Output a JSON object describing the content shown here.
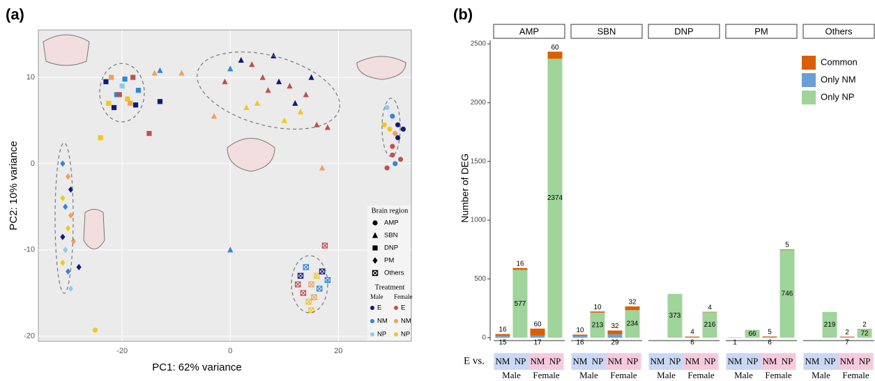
{
  "chart_data": [
    {
      "type": "scatter",
      "panel_label": "(a)",
      "x_label": "PC1: 62% variance",
      "y_label": "PC2: 10% variance",
      "xlim": [
        -35.5,
        33.5
      ],
      "ylim": [
        -20.6,
        15.5
      ],
      "xticks": [
        -20,
        0,
        20
      ],
      "yticks": [
        -20,
        -10,
        0,
        10
      ],
      "grid": true,
      "legend_title": "Brain region",
      "series": [
        {
          "name": "AMP",
          "marker": "circle",
          "x": [
            29,
            30,
            31,
            30.5,
            29.5,
            31,
            30,
            28.5,
            32,
            30,
            29,
            30.5,
            31.5,
            -25
          ],
          "y": [
            6.5,
            5.5,
            4.5,
            3.5,
            4,
            3,
            2,
            4.5,
            4,
            1,
            -0.5,
            0,
            0.5,
            -19.3
          ],
          "colors": [
            "#8fcbef",
            "#2e86de",
            "#0d1b7a",
            "#f0a05a",
            "#f5c51b",
            "#0d1b7a",
            "#c0504d",
            "#f5c51b",
            "#0d1b7a",
            "#c0504d",
            "#c0504d",
            "#2e86de",
            "#c0504d",
            "#f5c51b"
          ]
        },
        {
          "name": "SBN",
          "marker": "triangle",
          "x": [
            -13,
            -9,
            -3,
            0,
            2,
            4,
            6,
            8,
            9,
            11,
            12,
            13,
            14,
            16,
            18,
            -1,
            3,
            5,
            7,
            10,
            15,
            0,
            17,
            -14
          ],
          "y": [
            10.8,
            10.5,
            5.5,
            11,
            12,
            11.5,
            10,
            12.5,
            9.5,
            9,
            7,
            6,
            8,
            4.5,
            4.2,
            9.5,
            6.5,
            7,
            8.5,
            5,
            10,
            -10,
            -0.5,
            10.5
          ],
          "colors": [
            "#2e86de",
            "#f0a05a",
            "#f0a05a",
            "#2e86de",
            "#0d1b7a",
            "#c0504d",
            "#c0504d",
            "#0d1b7a",
            "#0d1b7a",
            "#c0504d",
            "#0d1b7a",
            "#f5c51b",
            "#c0504d",
            "#c0504d",
            "#c0504d",
            "#c0504d",
            "#f5c51b",
            "#f5c51b",
            "#c0504d",
            "#f5c51b",
            "#0d1b7a",
            "#2e86de",
            "#f0a05a",
            "#f0a05a"
          ]
        },
        {
          "name": "DNP",
          "marker": "square",
          "x": [
            -23,
            -22,
            -21,
            -20,
            -19,
            -18,
            -17,
            -22.5,
            -21.5,
            -20.5,
            -19.5,
            -18.5,
            -17.5,
            -24,
            -15,
            -13
          ],
          "y": [
            9.5,
            10,
            8,
            9,
            7.5,
            10,
            8.5,
            7,
            6.5,
            8,
            9.8,
            7,
            6.8,
            3,
            3.5,
            7.2
          ],
          "colors": [
            "#0d1b7a",
            "#f0a05a",
            "#2e86de",
            "#8fcbef",
            "#f5c51b",
            "#c0504d",
            "#2e86de",
            "#f5c51b",
            "#0d1b7a",
            "#c0504d",
            "#2e86de",
            "#f0a05a",
            "#0d1b7a",
            "#f5c51b",
            "#c0504d",
            "#0d1b7a"
          ]
        },
        {
          "name": "PM",
          "marker": "diamond",
          "x": [
            -31,
            -30,
            -29.5,
            -31,
            -30.5,
            -29.5,
            -30,
            -31,
            -29,
            -30.5,
            -31,
            -30,
            -29.5,
            -28
          ],
          "y": [
            0,
            -1.5,
            -3,
            -4,
            -5,
            -6,
            -7.5,
            -8.5,
            -9,
            -10,
            -11.5,
            -12.5,
            -14.5,
            -12
          ],
          "colors": [
            "#2e86de",
            "#f0a05a",
            "#0d1b7a",
            "#f5c51b",
            "#2e86de",
            "#f0a05a",
            "#f5c51b",
            "#0d1b7a",
            "#f0a05a",
            "#8fcbef",
            "#f5c51b",
            "#2e86de",
            "#8fcbef",
            "#0d1b7a"
          ]
        },
        {
          "name": "Others",
          "marker": "crossed-square",
          "x": [
            13,
            14,
            15,
            16,
            17,
            13.5,
            14.5,
            15.5,
            16.5,
            12.5,
            15,
            17.5,
            18
          ],
          "y": [
            -13,
            -12,
            -14,
            -13,
            -12.5,
            -15,
            -16,
            -15.5,
            -14.5,
            -14,
            -17,
            -9.5,
            -13.5
          ],
          "colors": [
            "#0d1b7a",
            "#2e86de",
            "#f0a05a",
            "#f5c51b",
            "#0d1b7a",
            "#c0504d",
            "#f5c51b",
            "#f0a05a",
            "#2e86de",
            "#c0504d",
            "#f5c51b",
            "#c0504d",
            "#2e86de"
          ]
        }
      ],
      "treatment_legend": {
        "title": "Treatment",
        "groups": [
          {
            "name": "Male",
            "items": [
              {
                "name": "E",
                "color": "#0d1b7a"
              },
              {
                "name": "NM",
                "color": "#2e86de"
              },
              {
                "name": "NP",
                "color": "#8fcbef"
              }
            ]
          },
          {
            "name": "Female",
            "items": [
              {
                "name": "E",
                "color": "#c0504d"
              },
              {
                "name": "NM",
                "color": "#f0a05a"
              },
              {
                "name": "NP",
                "color": "#f5c51b"
              }
            ]
          }
        ]
      }
    },
    {
      "type": "stacked-bar",
      "panel_label": "(b)",
      "y_label": "Number of DEG",
      "ylim": [
        -25,
        2530
      ],
      "yticks": [
        0,
        500,
        1000,
        1500,
        2000,
        2500
      ],
      "facets": [
        "AMP",
        "SBN",
        "DNP",
        "PM",
        "Others"
      ],
      "x_prefix": "E vs.",
      "groups": [
        {
          "name": "Male",
          "color": "#c9d8f6",
          "categories": [
            "NM",
            "NP"
          ]
        },
        {
          "name": "Female",
          "color": "#f6cadd",
          "categories": [
            "NM",
            "NP"
          ]
        }
      ],
      "series": [
        {
          "name": "Common",
          "color": "#d95f02",
          "label_position": "above",
          "values": [
            [
              16,
              16,
              60,
              60
            ],
            [
              10,
              10,
              32,
              32
            ],
            [
              null,
              null,
              4,
              4
            ],
            [
              null,
              null,
              5,
              5
            ],
            [
              null,
              null,
              2,
              2
            ]
          ]
        },
        {
          "name": "Only NM",
          "color": "#6a9fd6",
          "label_position": "below",
          "values": [
            [
              15,
              null,
              17,
              null
            ],
            [
              16,
              null,
              29,
              null
            ],
            [
              null,
              null,
              6,
              null
            ],
            [
              1,
              null,
              6,
              null
            ],
            [
              null,
              null,
              7,
              null
            ]
          ]
        },
        {
          "name": "Only NP",
          "color": "#9fd49a",
          "label_position": "inside",
          "values": [
            [
              null,
              577,
              null,
              2374
            ],
            [
              null,
              213,
              null,
              234
            ],
            [
              null,
              373,
              null,
              216
            ],
            [
              null,
              66,
              null,
              746
            ],
            [
              null,
              219,
              null,
              72
            ]
          ]
        }
      ]
    }
  ]
}
